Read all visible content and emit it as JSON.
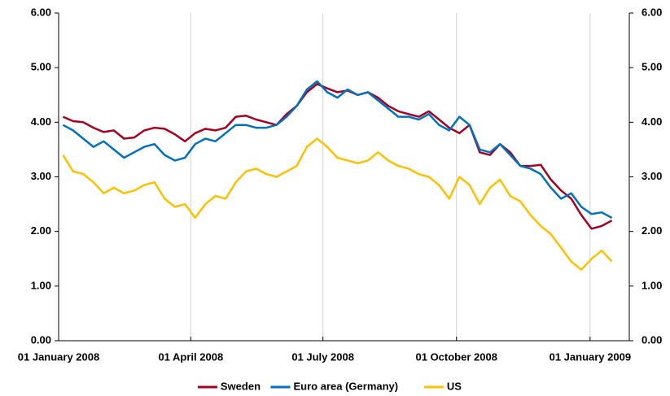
{
  "chart_data": {
    "type": "line",
    "x": [
      "2008-01-04",
      "2008-01-11",
      "2008-01-18",
      "2008-01-25",
      "2008-02-01",
      "2008-02-08",
      "2008-02-15",
      "2008-02-22",
      "2008-02-29",
      "2008-03-07",
      "2008-03-14",
      "2008-03-21",
      "2008-03-28",
      "2008-04-04",
      "2008-04-11",
      "2008-04-18",
      "2008-04-25",
      "2008-05-02",
      "2008-05-09",
      "2008-05-16",
      "2008-05-23",
      "2008-05-30",
      "2008-06-06",
      "2008-06-13",
      "2008-06-20",
      "2008-06-27",
      "2008-07-04",
      "2008-07-11",
      "2008-07-18",
      "2008-07-25",
      "2008-08-01",
      "2008-08-08",
      "2008-08-15",
      "2008-08-22",
      "2008-08-29",
      "2008-09-05",
      "2008-09-12",
      "2008-09-19",
      "2008-09-26",
      "2008-10-03",
      "2008-10-10",
      "2008-10-17",
      "2008-10-24",
      "2008-10-31",
      "2008-11-07",
      "2008-11-14",
      "2008-11-21",
      "2008-11-28",
      "2008-12-05",
      "2008-12-12",
      "2008-12-19",
      "2008-12-26",
      "2009-01-02",
      "2009-01-09",
      "2009-01-16"
    ],
    "series": [
      {
        "name": "Sweden",
        "color": "#a50021",
        "values": [
          4.1,
          4.02,
          4.0,
          3.9,
          3.82,
          3.85,
          3.7,
          3.72,
          3.85,
          3.9,
          3.88,
          3.78,
          3.65,
          3.8,
          3.88,
          3.85,
          3.9,
          4.1,
          4.12,
          4.05,
          4.0,
          3.95,
          4.15,
          4.3,
          4.55,
          4.7,
          4.62,
          4.55,
          4.58,
          4.5,
          4.55,
          4.45,
          4.3,
          4.2,
          4.15,
          4.1,
          4.2,
          4.05,
          3.9,
          3.8,
          3.95,
          3.45,
          3.4,
          3.6,
          3.45,
          3.2,
          3.2,
          3.22,
          2.95,
          2.75,
          2.6,
          2.3,
          2.05,
          2.1,
          2.2
        ]
      },
      {
        "name": "Euro area (Germany)",
        "color": "#0070c0",
        "values": [
          3.95,
          3.85,
          3.7,
          3.55,
          3.65,
          3.5,
          3.35,
          3.45,
          3.55,
          3.6,
          3.4,
          3.3,
          3.35,
          3.6,
          3.7,
          3.65,
          3.8,
          3.95,
          3.95,
          3.9,
          3.9,
          3.95,
          4.1,
          4.3,
          4.6,
          4.75,
          4.55,
          4.45,
          4.6,
          4.5,
          4.55,
          4.4,
          4.25,
          4.1,
          4.1,
          4.05,
          4.15,
          3.95,
          3.85,
          4.1,
          3.95,
          3.5,
          3.45,
          3.6,
          3.4,
          3.2,
          3.15,
          3.05,
          2.8,
          2.6,
          2.7,
          2.45,
          2.32,
          2.35,
          2.25
        ]
      },
      {
        "name": "US",
        "color": "#ffc000",
        "values": [
          3.4,
          3.1,
          3.05,
          2.9,
          2.7,
          2.8,
          2.7,
          2.75,
          2.85,
          2.9,
          2.6,
          2.45,
          2.5,
          2.25,
          2.5,
          2.65,
          2.6,
          2.9,
          3.1,
          3.15,
          3.05,
          3.0,
          3.1,
          3.2,
          3.55,
          3.7,
          3.55,
          3.35,
          3.3,
          3.25,
          3.3,
          3.45,
          3.3,
          3.2,
          3.15,
          3.05,
          3.0,
          2.85,
          2.6,
          3.0,
          2.85,
          2.5,
          2.8,
          2.95,
          2.65,
          2.55,
          2.3,
          2.1,
          1.95,
          1.7,
          1.45,
          1.3,
          1.5,
          1.65,
          1.45
        ]
      }
    ],
    "xlim": [
      "2008-01-01",
      "2009-01-28"
    ],
    "xticks": [
      {
        "value": "2008-01-01",
        "label": "01 January 2008"
      },
      {
        "value": "2008-04-01",
        "label": "01 April 2008"
      },
      {
        "value": "2008-07-01",
        "label": "01 July 2008"
      },
      {
        "value": "2008-10-01",
        "label": "01 October 2008"
      },
      {
        "value": "2009-01-01",
        "label": "01 January 2009"
      }
    ],
    "ylim": [
      0,
      6
    ],
    "yticks": [
      {
        "value": 0,
        "label": "0.00"
      },
      {
        "value": 1,
        "label": "1.00"
      },
      {
        "value": 2,
        "label": "2.00"
      },
      {
        "value": 3,
        "label": "3.00"
      },
      {
        "value": 4,
        "label": "4.00"
      },
      {
        "value": 5,
        "label": "5.00"
      },
      {
        "value": 6,
        "label": "6.00"
      }
    ],
    "y2lim": [
      0,
      6
    ],
    "y2ticks": [
      {
        "value": 0,
        "label": "0.00"
      },
      {
        "value": 1,
        "label": "1.00"
      },
      {
        "value": 2,
        "label": "2.00"
      },
      {
        "value": 3,
        "label": "3.00"
      },
      {
        "value": 4,
        "label": "4.00"
      },
      {
        "value": 5,
        "label": "5.00"
      },
      {
        "value": 6,
        "label": "6.00"
      }
    ],
    "grid": true,
    "legend": "bottom"
  }
}
